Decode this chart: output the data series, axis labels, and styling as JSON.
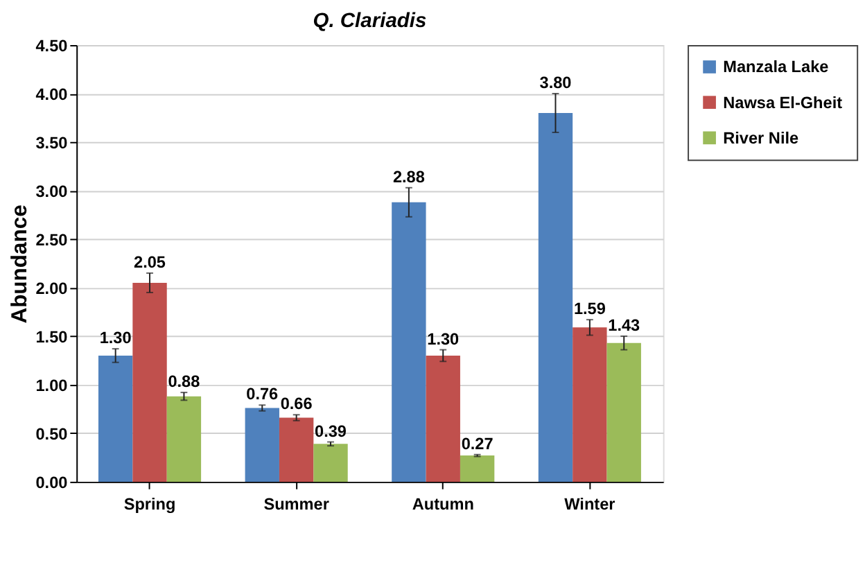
{
  "chart_data": {
    "type": "bar",
    "title": "Q. Clariadis",
    "ylabel": "Abundance",
    "categories": [
      "Spring",
      "Summer",
      "Autumn",
      "Winter"
    ],
    "series": [
      {
        "name": "Manzala Lake",
        "color": "#4f81bd",
        "values": [
          1.3,
          0.76,
          2.88,
          3.8
        ],
        "value_labels": [
          "1.30",
          "0.76",
          "2.88",
          "3.80"
        ],
        "errors": [
          0.07,
          0.03,
          0.15,
          0.2
        ]
      },
      {
        "name": "Nawsa El-Gheit",
        "color": "#c0504d",
        "values": [
          2.05,
          0.66,
          1.3,
          1.59
        ],
        "value_labels": [
          "2.05",
          "0.66",
          "1.30",
          "1.59"
        ],
        "errors": [
          0.1,
          0.03,
          0.06,
          0.08
        ]
      },
      {
        "name": "River Nile",
        "color": "#9bbb59",
        "values": [
          0.88,
          0.39,
          0.27,
          1.43
        ],
        "value_labels": [
          "0.88",
          "0.39",
          "0.27",
          "1.43"
        ],
        "errors": [
          0.04,
          0.02,
          0.01,
          0.07
        ]
      }
    ],
    "ylim": [
      0,
      4.5
    ],
    "yticks": [
      {
        "value": 0,
        "label": "0.00"
      },
      {
        "value": 0.5,
        "label": "0.50"
      },
      {
        "value": 1,
        "label": "1.00"
      },
      {
        "value": 1.5,
        "label": "1.50"
      },
      {
        "value": 2,
        "label": "2.00"
      },
      {
        "value": 2.5,
        "label": "2.50"
      },
      {
        "value": 3,
        "label": "3.00"
      },
      {
        "value": 3.5,
        "label": "3.50"
      },
      {
        "value": 4,
        "label": "4.00"
      },
      {
        "value": 4.5,
        "label": "4.50"
      }
    ],
    "grid": "y",
    "legend": "top right"
  }
}
